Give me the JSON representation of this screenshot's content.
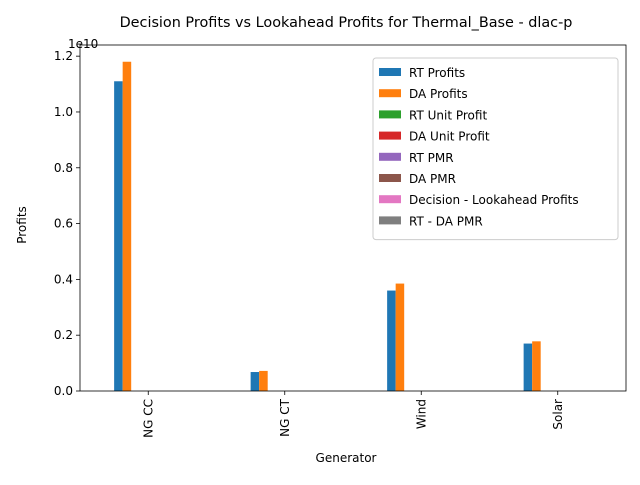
{
  "chart_data": {
    "type": "bar",
    "title": "Decision Profits vs Lookahead Profits for Thermal_Base - dlac-p",
    "xlabel": "Generator",
    "ylabel": "Profits",
    "offset_label": "1e10",
    "categories": [
      "NG CC",
      "NG CT",
      "Wind",
      "Solar"
    ],
    "y_scale_factor": 10000000000,
    "ylim": [
      0,
      12400000000
    ],
    "yticks": [
      0,
      2000000000,
      4000000000,
      6000000000,
      8000000000,
      10000000000,
      12000000000
    ],
    "ytick_labels": [
      "0.0",
      "0.2",
      "0.4",
      "0.6",
      "0.8",
      "1.0",
      "1.2"
    ],
    "legend_position": "top-right",
    "grid": false,
    "series": [
      {
        "name": "RT Profits",
        "color": "#1f77b4",
        "values": [
          11100000000,
          680000000,
          3600000000,
          1700000000
        ]
      },
      {
        "name": "DA Profits",
        "color": "#ff7f0e",
        "values": [
          11800000000,
          720000000,
          3850000000,
          1780000000
        ]
      },
      {
        "name": "RT Unit Profit",
        "color": "#2ca02c",
        "values": [
          0,
          0,
          0,
          0
        ]
      },
      {
        "name": "DA Unit Profit",
        "color": "#d62728",
        "values": [
          0,
          0,
          0,
          0
        ]
      },
      {
        "name": "RT PMR",
        "color": "#9467bd",
        "values": [
          0,
          0,
          0,
          0
        ]
      },
      {
        "name": "DA PMR",
        "color": "#8c564b",
        "values": [
          0,
          0,
          0,
          0
        ]
      },
      {
        "name": "Decision - Lookahead Profits",
        "color": "#e377c2",
        "values": [
          0,
          0,
          0,
          0
        ]
      },
      {
        "name": "RT - DA PMR",
        "color": "#7f7f7f",
        "values": [
          0,
          0,
          0,
          0
        ]
      }
    ]
  }
}
